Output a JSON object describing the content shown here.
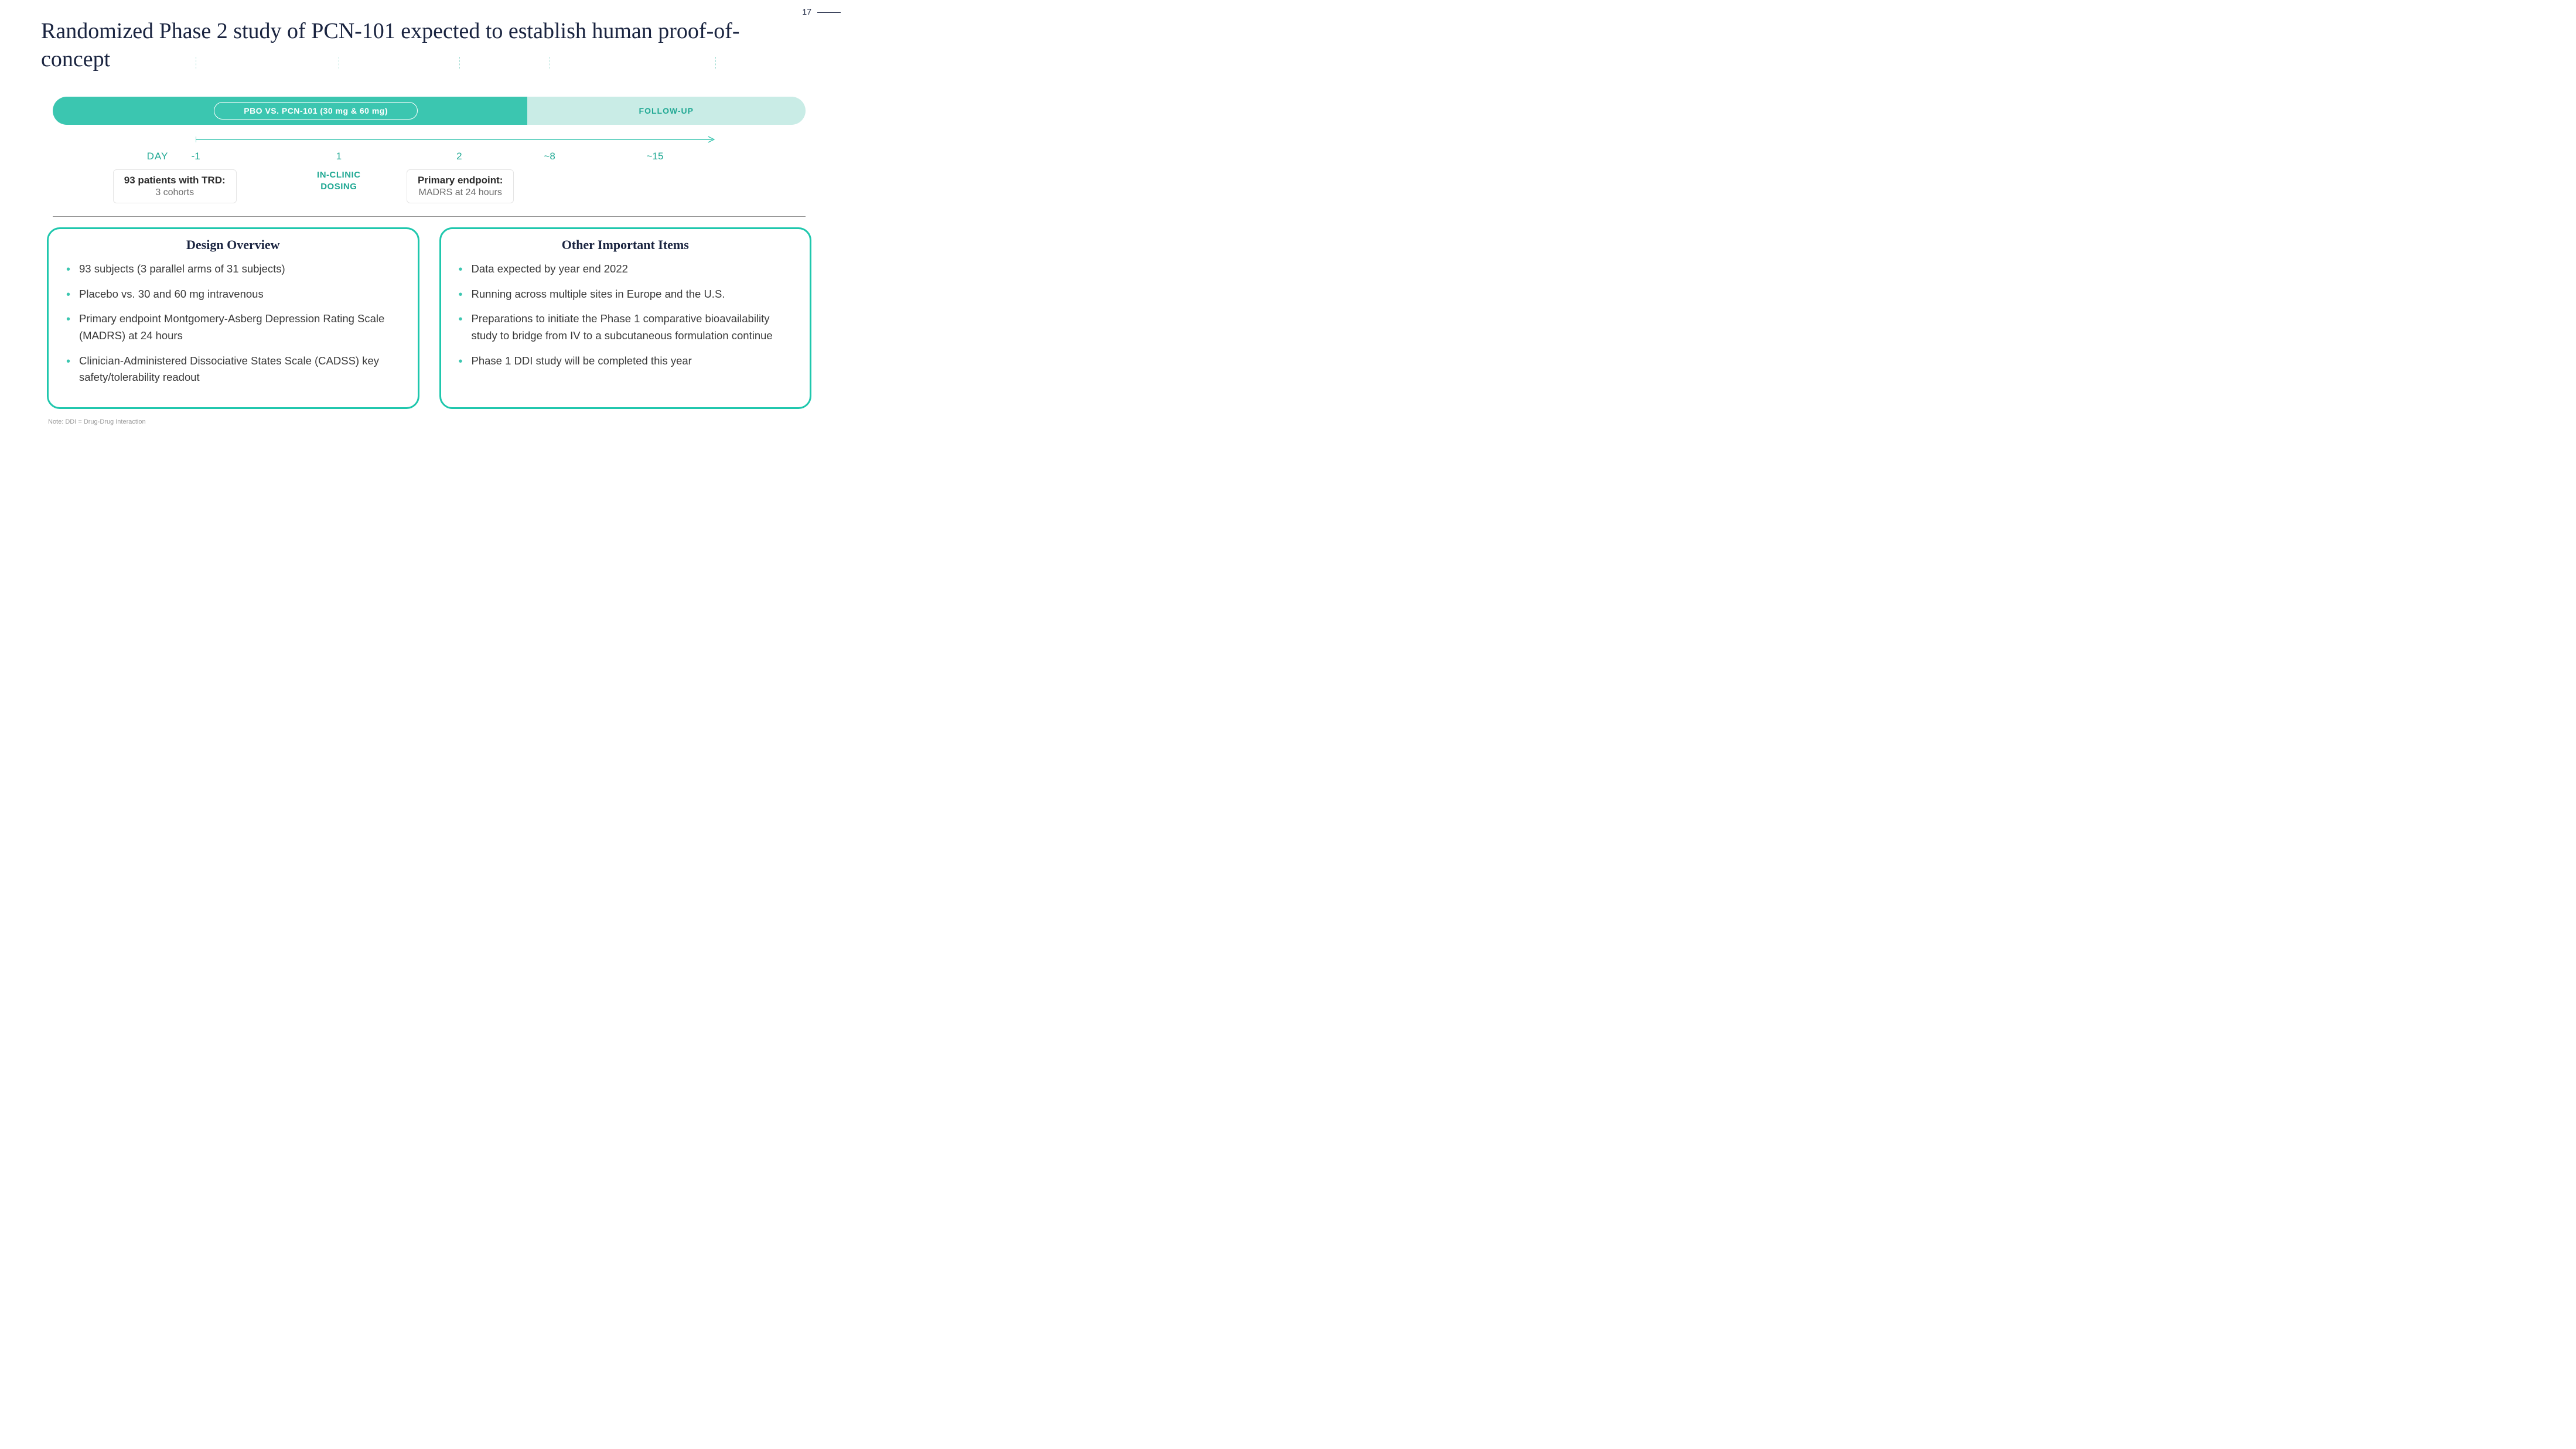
{
  "page_number": "17",
  "title": "Randomized Phase 2 study of PCN-101 expected to establish human proof-of-concept",
  "timeline": {
    "pill_left_label": "PBO VS. PCN-101 (30 mg & 60 mg)",
    "pill_right_label": "FOLLOW-UP",
    "pill_left_color": "#3bc6b0",
    "pill_right_color": "#c9ece6",
    "accent_color": "#1fa893",
    "day_label": "DAY",
    "ticks_pct": [
      19,
      38,
      54,
      66,
      88
    ],
    "days": [
      {
        "label": "-1",
        "pct": 19
      },
      {
        "label": "1",
        "pct": 38
      },
      {
        "label": "2",
        "pct": 54
      },
      {
        "label": "~8",
        "pct": 66
      },
      {
        "label": "~15",
        "pct": 80
      }
    ],
    "inclinic": {
      "line1": "IN-CLINIC",
      "line2": "DOSING",
      "pct": 38
    },
    "box_left": {
      "line1": "93 patients with TRD:",
      "line2": "3 cohorts",
      "left_pct": 8
    },
    "box_right": {
      "line1": "Primary endpoint:",
      "line2": "MADRS at 24 hours",
      "left_pct": 47
    }
  },
  "panels": {
    "border_color": "#1fc7ad",
    "left": {
      "title": "Design Overview",
      "items": [
        "93 subjects (3 parallel arms of 31 subjects)",
        "Placebo vs. 30 and 60 mg intravenous",
        "Primary endpoint Montgomery-Asberg Depression Rating Scale (MADRS) at 24 hours",
        "Clinician-Administered Dissociative States Scale (CADSS) key safety/tolerability readout"
      ]
    },
    "right": {
      "title": "Other Important Items",
      "items": [
        "Data expected by year end 2022",
        "Running across multiple sites in Europe and the U.S.",
        "Preparations to initiate the Phase 1 comparative bioavailability study to bridge from IV to a subcutaneous formulation continue",
        "Phase 1 DDI study will be completed this year"
      ]
    }
  },
  "footnote": "Note:  DDI = Drug-Drug Interaction"
}
